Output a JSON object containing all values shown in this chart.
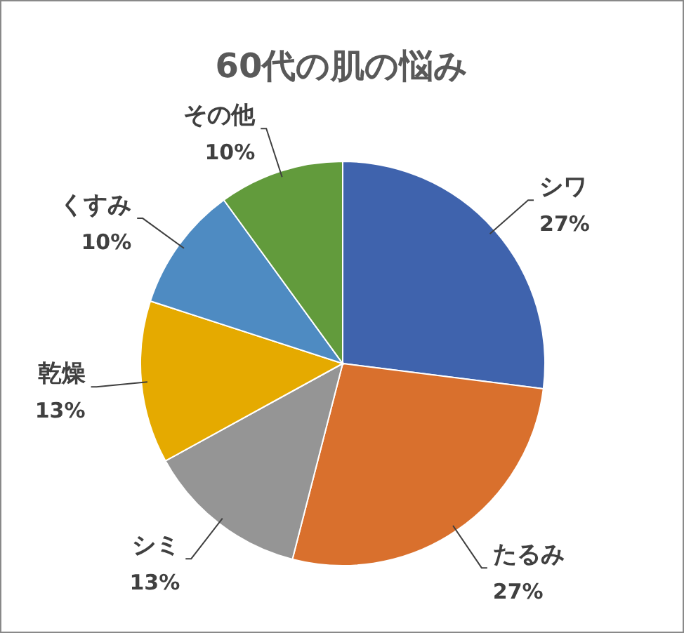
{
  "chart_data": {
    "type": "pie",
    "title": "60代の肌の悩み",
    "categories": [
      "シワ",
      "たるみ",
      "シミ",
      "乾燥",
      "くすみ",
      "その他"
    ],
    "values": [
      27,
      27,
      13,
      13,
      10,
      10
    ],
    "colors": [
      "#3f63ad",
      "#d9702d",
      "#959595",
      "#e5aa00",
      "#4e8bc2",
      "#629b3c"
    ],
    "value_labels": [
      "27%",
      "27%",
      "13%",
      "13%",
      "10%",
      "10%"
    ]
  }
}
